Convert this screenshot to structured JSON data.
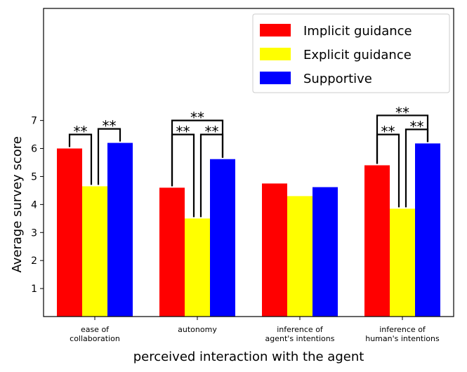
{
  "chart_data": {
    "type": "bar",
    "title": "",
    "xlabel": "perceived interaction with the agent",
    "ylabel": "Average survey score",
    "ylim": [
      0,
      11
    ],
    "yticks": [
      1,
      2,
      3,
      4,
      5,
      6,
      7
    ],
    "categories": [
      [
        "ease of",
        "collaboration"
      ],
      [
        "autonomy"
      ],
      [
        "inference of",
        "agent's intentions"
      ],
      [
        "inference of",
        "human's intentions"
      ]
    ],
    "series": [
      {
        "name": "Implicit guidance",
        "color": "#ff0000",
        "values": [
          6.0,
          4.6,
          4.75,
          5.4
        ]
      },
      {
        "name": "Explicit guidance",
        "color": "#ffff00",
        "values": [
          4.65,
          3.5,
          4.3,
          3.85
        ]
      },
      {
        "name": "Supportive",
        "color": "#0000ff",
        "values": [
          6.2,
          5.62,
          4.62,
          6.18
        ]
      }
    ],
    "legend_position": "top-right",
    "significance": [
      {
        "category": 0,
        "from": 0,
        "to": 1,
        "label": "**"
      },
      {
        "category": 0,
        "from": 1,
        "to": 2,
        "label": "**"
      },
      {
        "category": 1,
        "from": 0,
        "to": 1,
        "label": "**"
      },
      {
        "category": 1,
        "from": 1,
        "to": 2,
        "label": "**"
      },
      {
        "category": 1,
        "from": 0,
        "to": 2,
        "label": "**"
      },
      {
        "category": 3,
        "from": 0,
        "to": 1,
        "label": "**"
      },
      {
        "category": 3,
        "from": 1,
        "to": 2,
        "label": "**"
      },
      {
        "category": 3,
        "from": 0,
        "to": 2,
        "label": "**"
      }
    ]
  }
}
